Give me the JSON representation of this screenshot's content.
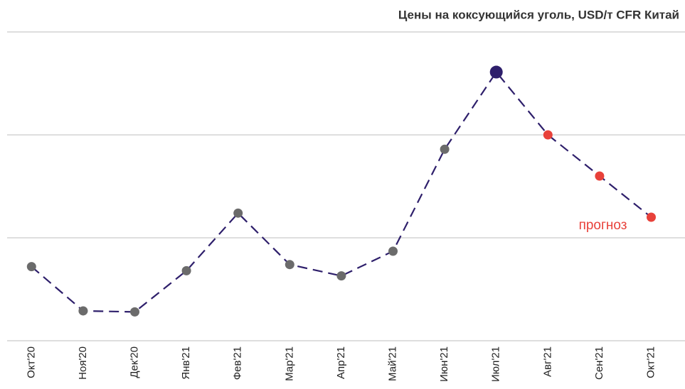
{
  "chart_data": {
    "type": "line",
    "title": "Цены на коксующийся уголь, USD/т CFR Китай",
    "categories": [
      "Окт'20",
      "Ноя'20",
      "Дек'20",
      "Янв'21",
      "Фев'21",
      "Мар'21",
      "Апр'21",
      "Май'21",
      "Июн'21",
      "Июл'21",
      "Авг'21",
      "Сен'21",
      "Окт'21"
    ],
    "series": [
      {
        "name": "Цены на коксующийся уголь",
        "color": "#2e1f6b",
        "values": [
          72,
          29,
          28,
          68,
          124,
          74,
          63,
          87,
          186,
          261,
          200,
          160,
          120
        ],
        "point_colors": [
          "#6b6b6b",
          "#6b6b6b",
          "#6b6b6b",
          "#6b6b6b",
          "#6b6b6b",
          "#6b6b6b",
          "#6b6b6b",
          "#6b6b6b",
          "#6b6b6b",
          "#2e1f6b",
          "#e8413a",
          "#e8413a",
          "#e8413a"
        ]
      }
    ],
    "annotation": {
      "text": "прогноз",
      "color": "#e8413a"
    },
    "ylim": [
      0,
      300
    ],
    "yticks": [
      0,
      100,
      200,
      300
    ],
    "grid": true
  }
}
